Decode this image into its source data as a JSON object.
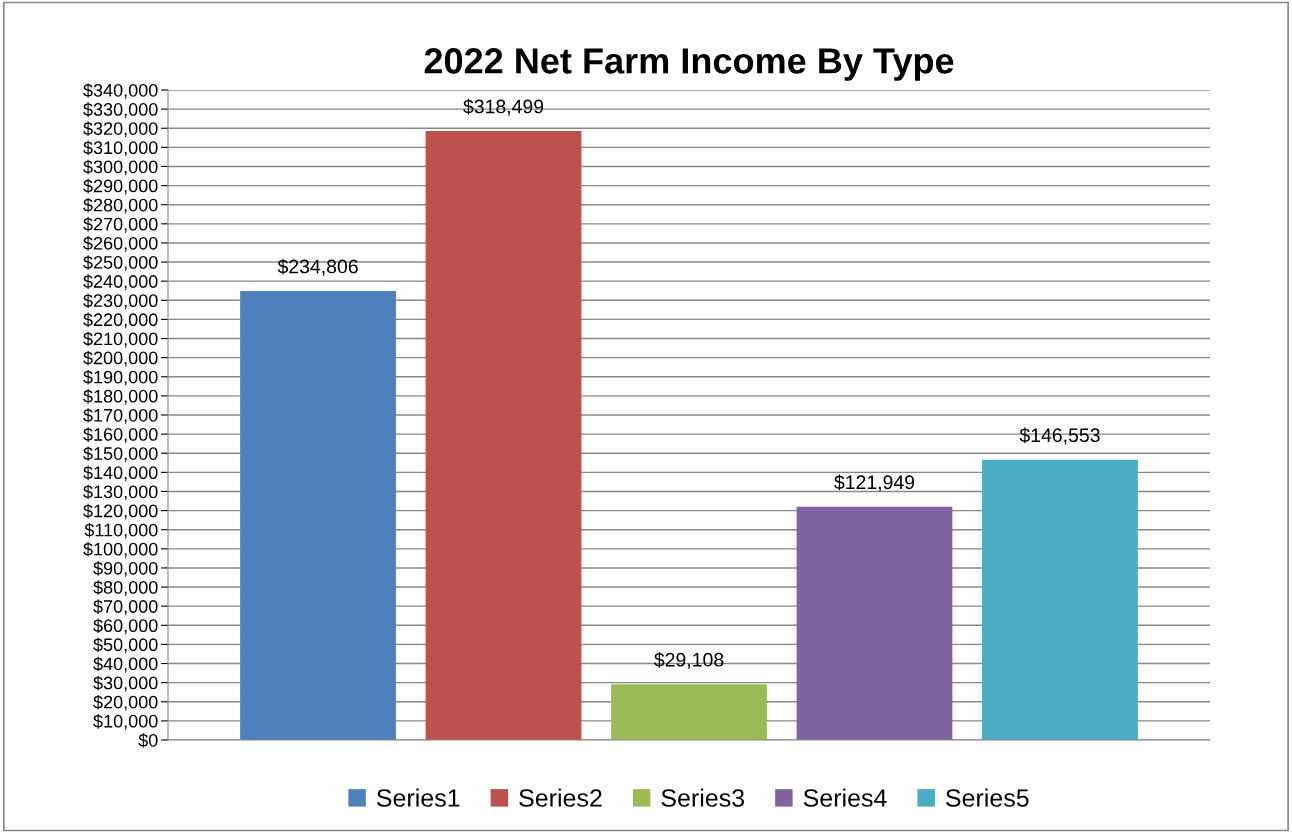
{
  "chart_data": {
    "type": "bar",
    "title": "2022 Net Farm Income By Type",
    "categories": [
      null
    ],
    "series": [
      {
        "name": "Series1",
        "color": "#4f81bd",
        "values": [
          234806
        ],
        "value_labels": [
          "$234,806"
        ]
      },
      {
        "name": "Series2",
        "color": "#c0504d",
        "values": [
          318499
        ],
        "value_labels": [
          "$318,499"
        ]
      },
      {
        "name": "Series3",
        "color": "#9bbb59",
        "values": [
          29108
        ],
        "value_labels": [
          "$29,108"
        ]
      },
      {
        "name": "Series4",
        "color": "#8064a2",
        "values": [
          121949
        ],
        "value_labels": [
          "$121,949"
        ]
      },
      {
        "name": "Series5",
        "color": "#4bacc6",
        "values": [
          146553
        ],
        "value_labels": [
          "$146,553"
        ]
      }
    ],
    "ylim": [
      0,
      340000
    ],
    "yticks": [
      {
        "value": 0,
        "label": "$0"
      },
      {
        "value": 10000,
        "label": "$10,000"
      },
      {
        "value": 20000,
        "label": "$20,000"
      },
      {
        "value": 30000,
        "label": "$30,000"
      },
      {
        "value": 40000,
        "label": "$40,000"
      },
      {
        "value": 50000,
        "label": "$50,000"
      },
      {
        "value": 60000,
        "label": "$60,000"
      },
      {
        "value": 70000,
        "label": "$70,000"
      },
      {
        "value": 80000,
        "label": "$80,000"
      },
      {
        "value": 90000,
        "label": "$90,000"
      },
      {
        "value": 100000,
        "label": "$100,000"
      },
      {
        "value": 110000,
        "label": "$110,000"
      },
      {
        "value": 120000,
        "label": "$120,000"
      },
      {
        "value": 130000,
        "label": "$130,000"
      },
      {
        "value": 140000,
        "label": "$140,000"
      },
      {
        "value": 150000,
        "label": "$150,000"
      },
      {
        "value": 160000,
        "label": "$160,000"
      },
      {
        "value": 170000,
        "label": "$170,000"
      },
      {
        "value": 180000,
        "label": "$180,000"
      },
      {
        "value": 190000,
        "label": "$190,000"
      },
      {
        "value": 200000,
        "label": "$200,000"
      },
      {
        "value": 210000,
        "label": "$210,000"
      },
      {
        "value": 220000,
        "label": "$220,000"
      },
      {
        "value": 230000,
        "label": "$230,000"
      },
      {
        "value": 240000,
        "label": "$240,000"
      },
      {
        "value": 250000,
        "label": "$250,000"
      },
      {
        "value": 260000,
        "label": "$260,000"
      },
      {
        "value": 270000,
        "label": "$270,000"
      },
      {
        "value": 280000,
        "label": "$280,000"
      },
      {
        "value": 290000,
        "label": "$290,000"
      },
      {
        "value": 300000,
        "label": "$300,000"
      },
      {
        "value": 310000,
        "label": "$310,000"
      },
      {
        "value": 320000,
        "label": "$320,000"
      },
      {
        "value": 330000,
        "label": "$330,000"
      },
      {
        "value": 340000,
        "label": "$340,000"
      }
    ],
    "grid": "y",
    "legend": "bottom"
  }
}
